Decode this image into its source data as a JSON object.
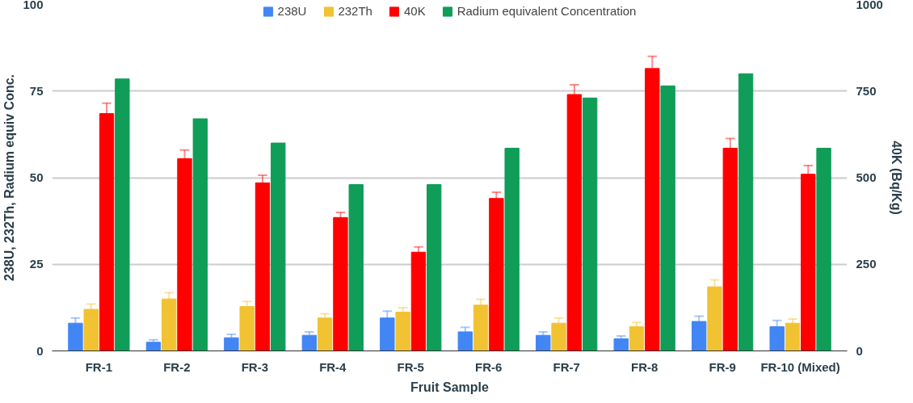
{
  "chart_data": {
    "type": "bar",
    "xlabel": "Fruit Sample",
    "ylabel": "238U, 232Th, Radium equiv Conc.",
    "y2label": "40K (Bq/Kg)",
    "categories": [
      "FR-1",
      "FR-2",
      "FR-3",
      "FR-4",
      "FR-5",
      "FR-6",
      "FR-7",
      "FR-8",
      "FR-9",
      "FR-10 (Mixed)"
    ],
    "series": [
      {
        "name": "238U",
        "color": "#4285f4",
        "values": [
          8,
          2.5,
          3.8,
          4.5,
          9.5,
          5.5,
          4.5,
          3.5,
          8.5,
          7
        ],
        "errors": [
          1.5,
          0.7,
          1,
          1,
          2,
          1.3,
          1,
          0.8,
          1.5,
          1.8
        ]
      },
      {
        "name": "232Th",
        "color": "#f1c232",
        "values": [
          12,
          15,
          12.8,
          9.5,
          11.2,
          13.2,
          8,
          7,
          18.5,
          8
        ],
        "errors": [
          1.5,
          1.8,
          1.5,
          1.2,
          1.3,
          1.7,
          1.5,
          1.2,
          2,
          1.2
        ]
      },
      {
        "name": "40K",
        "color": "#ff0000",
        "values": [
          685,
          555,
          485,
          385,
          285,
          440,
          740,
          815,
          585,
          510
        ],
        "errors": [
          30,
          25,
          22,
          15,
          15,
          18,
          28,
          35,
          28,
          25
        ],
        "axis": "y2"
      },
      {
        "name": "Radium equivalent Concentration",
        "color": "#0f9d58",
        "values": [
          78.5,
          67,
          60,
          48,
          48,
          58.5,
          73,
          76.5,
          80,
          58.5
        ]
      }
    ],
    "ylim": [
      0,
      100
    ],
    "yticks": [
      0,
      25,
      50,
      75,
      100
    ],
    "y2lim": [
      0,
      1000
    ],
    "y2ticks": [
      0,
      250,
      500,
      750,
      1000
    ],
    "grid": "y",
    "legend": "top"
  }
}
